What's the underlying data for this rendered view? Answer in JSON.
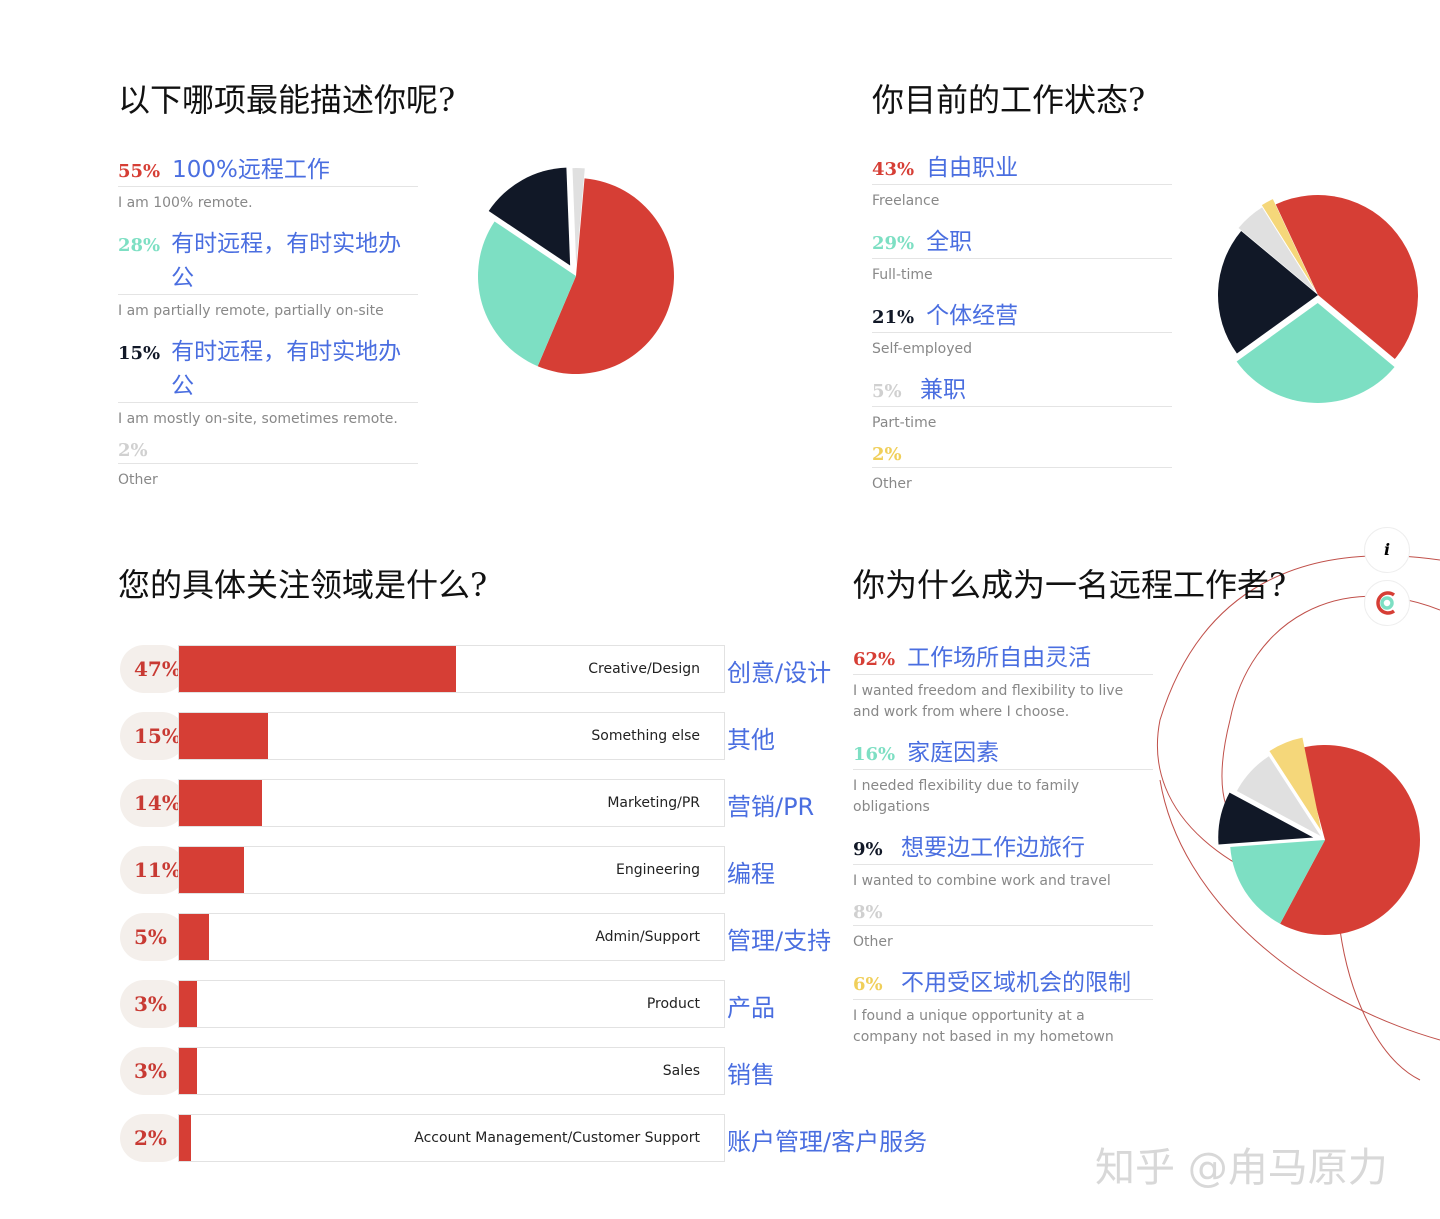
{
  "chart_data": [
    {
      "type": "pie",
      "title": "以下哪项最能描述你呢?",
      "colors": [
        "#d63e35",
        "#7ddfc3",
        "#111827",
        "#e0e0e0"
      ],
      "slices": [
        {
          "pct": "55%",
          "value": 55,
          "zh": "100%远程工作",
          "en": "I am 100% remote.",
          "pct_color": "#d63e35"
        },
        {
          "pct": "28%",
          "value": 28,
          "zh": "有时远程，有时实地办公",
          "en": "I am partially remote, partially on-site",
          "pct_color": "#7ddfc3"
        },
        {
          "pct": "15%",
          "value": 15,
          "zh": "有时远程，有时实地办公",
          "en": "I am mostly on-site, sometimes remote.",
          "pct_color": "#111827"
        },
        {
          "pct": "2%",
          "value": 2,
          "zh": "",
          "en": "Other",
          "pct_color": "#d0d0d0"
        }
      ]
    },
    {
      "type": "pie",
      "title": "你目前的工作状态?",
      "colors": [
        "#d63e35",
        "#7ddfc3",
        "#111827",
        "#e0e0e0",
        "#f5d77a"
      ],
      "slices": [
        {
          "pct": "43%",
          "value": 43,
          "zh": "自由职业",
          "en": "Freelance",
          "pct_color": "#d63e35"
        },
        {
          "pct": "29%",
          "value": 29,
          "zh": "全职",
          "en": "Full-time",
          "pct_color": "#7ddfc3"
        },
        {
          "pct": "21%",
          "value": 21,
          "zh": "个体经营",
          "en": "Self-employed",
          "pct_color": "#111827"
        },
        {
          "pct": "5%",
          "value": 5,
          "zh": "兼职",
          "en": "Part-time",
          "pct_color": "#d0d0d0"
        },
        {
          "pct": "2%",
          "value": 2,
          "zh": "",
          "en": "Other",
          "pct_color": "#f0cf5a"
        }
      ]
    },
    {
      "type": "bar",
      "title": "您的具体关注领域是什么?",
      "color": "#d63e35",
      "bars": [
        {
          "pct": "47%",
          "value": 47,
          "en": "Creative/Design",
          "zh": "创意/设计"
        },
        {
          "pct": "15%",
          "value": 15,
          "en": "Something else",
          "zh": "其他"
        },
        {
          "pct": "14%",
          "value": 14,
          "en": "Marketing/PR",
          "zh": "营销/PR"
        },
        {
          "pct": "11%",
          "value": 11,
          "en": "Engineering",
          "zh": "编程"
        },
        {
          "pct": "5%",
          "value": 5,
          "en": "Admin/Support",
          "zh": "管理/支持"
        },
        {
          "pct": "3%",
          "value": 3,
          "en": "Product",
          "zh": "产品"
        },
        {
          "pct": "3%",
          "value": 3,
          "en": "Sales",
          "zh": "销售"
        },
        {
          "pct": "2%",
          "value": 2,
          "en": "Account Management/Customer Support",
          "zh": "账户管理/客户服务"
        }
      ]
    },
    {
      "type": "pie",
      "title": "你为什么成为一名远程工作者?",
      "colors": [
        "#d63e35",
        "#7ddfc3",
        "#111827",
        "#e0e0e0",
        "#f5d77a"
      ],
      "slices": [
        {
          "pct": "62%",
          "value": 62,
          "zh": "工作场所自由灵活",
          "en": "I wanted freedom and flexibility to live and work from where I choose.",
          "pct_color": "#d63e35"
        },
        {
          "pct": "16%",
          "value": 16,
          "zh": "家庭因素",
          "en": "I needed flexibility due to family obligations",
          "pct_color": "#7ddfc3"
        },
        {
          "pct": "9%",
          "value": 9,
          "zh": "想要边工作边旅行",
          "en": "I wanted to combine work and travel",
          "pct_color": "#111827"
        },
        {
          "pct": "8%",
          "value": 8,
          "zh": "",
          "en": "Other",
          "pct_color": "#d0d0d0"
        },
        {
          "pct": "6%",
          "value": 6,
          "zh": "不用受区域机会的限制",
          "en": "I found a unique opportunity at a company not based in my hometown",
          "pct_color": "#f0cf5a"
        }
      ]
    }
  ],
  "watermark": "知乎 @甪马原力",
  "icons": {
    "info": "i"
  }
}
